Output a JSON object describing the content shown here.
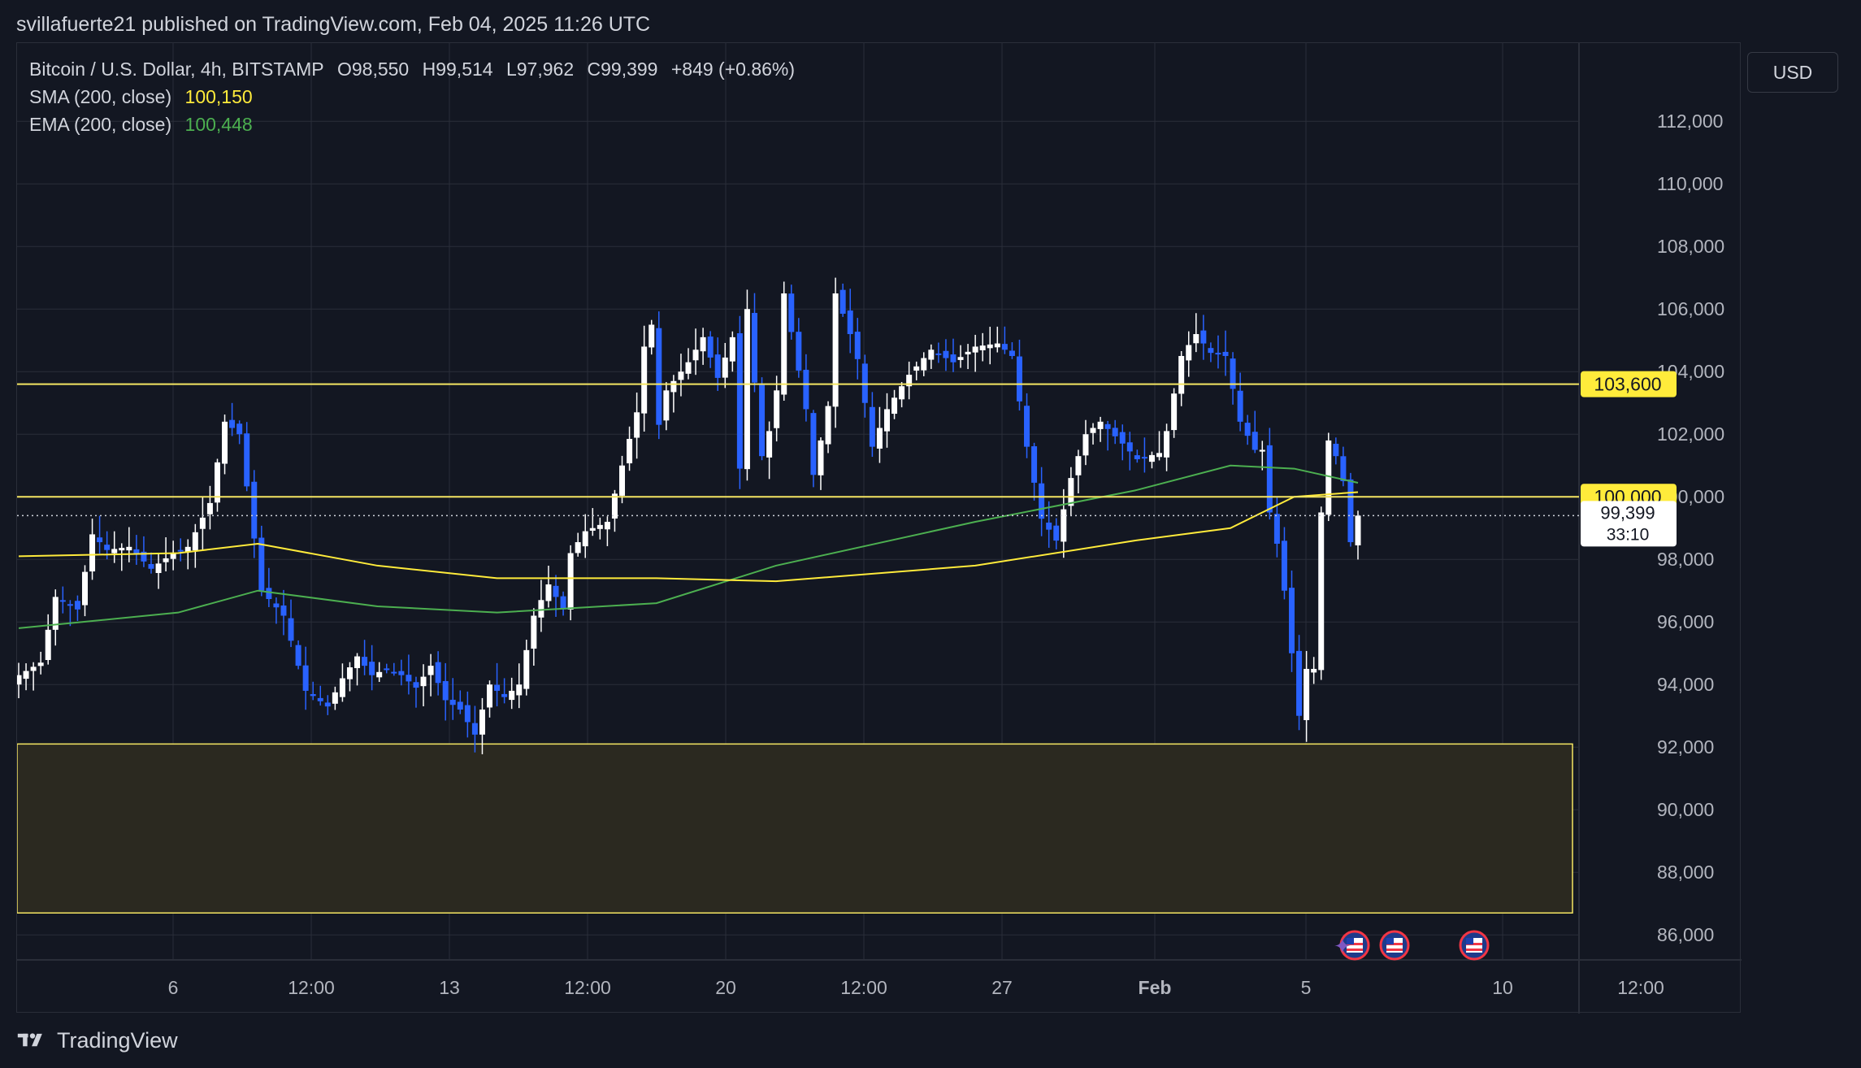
{
  "header": {
    "publisher_line": "svillafuerte21 published on TradingView.com, Feb 04, 2025 11:26 UTC"
  },
  "legend": {
    "symbol": "Bitcoin / U.S. Dollar, 4h, BITSTAMP",
    "open": "O98,550",
    "high": "H99,514",
    "low": "L97,962",
    "close": "C99,399",
    "change": "+849 (+0.86%)",
    "sma_label": "SMA (200, close)",
    "sma_value": "100,150",
    "ema_label": "EMA (200, close)",
    "ema_value": "100,448"
  },
  "currency_button": "USD",
  "footer": {
    "brand": "TradingView"
  },
  "colors": {
    "background": "#131722",
    "grid": "#2a2e39",
    "candle_up": "#ffffff",
    "candle_down": "#2962ff",
    "sma": "#ffeb3b",
    "ema": "#4caf50",
    "horizontal_line": "#f5e663",
    "zone_fill": "#2b2920",
    "text": "#d1d4dc"
  },
  "chart_data": {
    "type": "candlestick",
    "title": "Bitcoin / U.S. Dollar, 4h, BITSTAMP",
    "ylabel": "USD",
    "ylim": [
      85200,
      114500
    ],
    "y_ticks": [
      86000,
      88000,
      90000,
      92000,
      94000,
      96000,
      98000,
      100000,
      102000,
      104000,
      106000,
      108000,
      110000,
      112000
    ],
    "y_tick_labels": [
      "86,000",
      "88,000",
      "90,000",
      "92,000",
      "94,000",
      "96,000",
      "98,000",
      "100,000",
      "102,000",
      "104,000",
      "106,000",
      "108,000",
      "110,000",
      "112,000"
    ],
    "x_tick_labels": [
      "6",
      "12:00",
      "13",
      "12:00",
      "20",
      "12:00",
      "27",
      "Feb",
      "5",
      "10",
      "12:00"
    ],
    "x_tick_bold": "Feb",
    "horizontal_levels": [
      {
        "value": 103600,
        "label": "103,600"
      },
      {
        "value": 100000,
        "label": "100,000"
      }
    ],
    "zone": {
      "from": 86700,
      "to": 92100
    },
    "last_price": {
      "value": 99399,
      "label": "99,399",
      "countdown": "33:10"
    },
    "candle_count": 170,
    "price_path": [
      [
        0,
        94300
      ],
      [
        3,
        94700
      ],
      [
        5,
        96800
      ],
      [
        8,
        96400
      ],
      [
        10,
        98800
      ],
      [
        12,
        98300
      ],
      [
        15,
        98400
      ],
      [
        18,
        97700
      ],
      [
        21,
        98200
      ],
      [
        23,
        98400
      ],
      [
        26,
        99800
      ],
      [
        28,
        102400
      ],
      [
        30,
        102000
      ],
      [
        33,
        97000
      ],
      [
        36,
        96200
      ],
      [
        39,
        93800
      ],
      [
        42,
        93300
      ],
      [
        44,
        94200
      ],
      [
        46,
        94900
      ],
      [
        48,
        94300
      ],
      [
        50,
        94500
      ],
      [
        52,
        94300
      ],
      [
        54,
        93900
      ],
      [
        56,
        94600
      ],
      [
        58,
        93500
      ],
      [
        60,
        93200
      ],
      [
        62,
        92400
      ],
      [
        64,
        94000
      ],
      [
        66,
        93600
      ],
      [
        68,
        94000
      ],
      [
        70,
        96200
      ],
      [
        72,
        97200
      ],
      [
        74,
        96400
      ],
      [
        75,
        98200
      ],
      [
        77,
        98900
      ],
      [
        80,
        99200
      ],
      [
        82,
        101000
      ],
      [
        84,
        102700
      ],
      [
        85,
        104800
      ],
      [
        86,
        105500
      ],
      [
        87,
        102300
      ],
      [
        88,
        103400
      ],
      [
        91,
        104300
      ],
      [
        93,
        105100
      ],
      [
        95,
        103800
      ],
      [
        97,
        105100
      ],
      [
        98,
        100900
      ],
      [
        99,
        106000
      ],
      [
        101,
        101300
      ],
      [
        102,
        102100
      ],
      [
        103,
        103400
      ],
      [
        104,
        106500
      ],
      [
        107,
        102800
      ],
      [
        108,
        100700
      ],
      [
        109,
        101800
      ],
      [
        110,
        102900
      ],
      [
        111,
        106500
      ],
      [
        113,
        105200
      ],
      [
        114,
        104400
      ],
      [
        116,
        101600
      ],
      [
        118,
        102800
      ],
      [
        121,
        103900
      ],
      [
        124,
        104700
      ],
      [
        127,
        104300
      ],
      [
        130,
        104800
      ],
      [
        133,
        104900
      ],
      [
        135,
        104500
      ],
      [
        137,
        101600
      ],
      [
        139,
        99300
      ],
      [
        141,
        98600
      ],
      [
        143,
        100600
      ],
      [
        145,
        102000
      ],
      [
        147,
        102400
      ],
      [
        150,
        101700
      ],
      [
        152,
        101200
      ],
      [
        155,
        101400
      ],
      [
        156,
        102100
      ],
      [
        158,
        104500
      ],
      [
        160,
        105200
      ],
      [
        162,
        104600
      ],
      [
        164,
        104500
      ],
      [
        166,
        102400
      ],
      [
        168,
        101500
      ]
    ],
    "series": [
      {
        "name": "SMA (200, close)",
        "last_value": 100150,
        "points": [
          [
            0,
            98100
          ],
          [
            20,
            98200
          ],
          [
            30,
            98500
          ],
          [
            45,
            97800
          ],
          [
            60,
            97400
          ],
          [
            80,
            97400
          ],
          [
            95,
            97300
          ],
          [
            120,
            97800
          ],
          [
            140,
            98600
          ],
          [
            152,
            99000
          ],
          [
            160,
            100000
          ],
          [
            168,
            100150
          ]
        ]
      },
      {
        "name": "EMA (200, close)",
        "last_value": 100448,
        "points": [
          [
            0,
            95800
          ],
          [
            20,
            96300
          ],
          [
            30,
            97000
          ],
          [
            45,
            96500
          ],
          [
            60,
            96300
          ],
          [
            80,
            96600
          ],
          [
            95,
            97800
          ],
          [
            120,
            99200
          ],
          [
            140,
            100200
          ],
          [
            152,
            101000
          ],
          [
            160,
            100900
          ],
          [
            168,
            100448
          ]
        ]
      }
    ],
    "event_markers": 3
  }
}
